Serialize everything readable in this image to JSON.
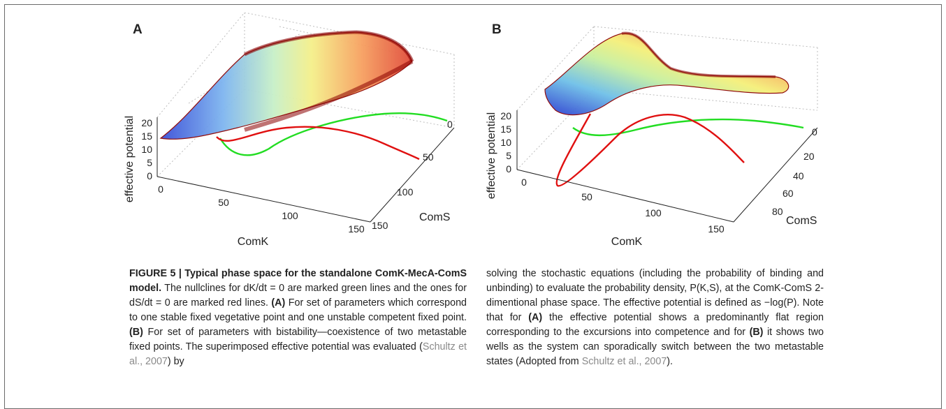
{
  "panels": [
    {
      "label": "A",
      "zlabel": "effective potential",
      "xlabel": "ComK",
      "ylabel": "ComS",
      "zticks": [
        "0",
        "5",
        "10",
        "15",
        "20"
      ],
      "xticks": [
        "0",
        "50",
        "100",
        "150"
      ],
      "yticks": [
        "0",
        "50",
        "100",
        "150"
      ]
    },
    {
      "label": "B",
      "zlabel": "effective potential",
      "xlabel": "ComK",
      "ylabel": "ComS",
      "zticks": [
        "0",
        "5",
        "10",
        "15",
        "20"
      ],
      "xticks": [
        "0",
        "50",
        "100",
        "150"
      ],
      "yticks": [
        "0",
        "20",
        "40",
        "60",
        "80"
      ]
    }
  ],
  "colors": {
    "green_nullcline": "#22dd22",
    "red_nullcline": "#e01010",
    "surface_edge": "#8b0000"
  },
  "caption": {
    "title": "FIGURE 5 | Typical phase space for the standalone ComK-MecA-ComS model.",
    "p1": " The nullclines for dK/dt = 0 are marked green lines and the ones for dS/dt = 0 are marked red lines. ",
    "a_label": "(A)",
    "p2": " For set of parameters which correspond to one stable fixed vegetative point and one unstable competent fixed point. ",
    "b_label": "(B)",
    "p3": " For set of parameters with bistability—coexistence of two metastable fixed points. The superimposed effective potential was evaluated (",
    "cite1": "Schultz et al., 2007",
    "p4": ") by solving the stochastic equations (including the probability of binding and unbinding) to evaluate the probability density, P(K,S), at the ComK-ComS 2-dimentional phase space. The effective potential is defined as −log(P). Note that for ",
    "a_label2": "(A)",
    "p5": " the effective potential shows a predominantly flat region corresponding to the excursions into competence and for ",
    "b_label2": "(B)",
    "p6": " it shows two wells as the system can sporadically switch between the two metastable states (Adopted from ",
    "cite2": "Schultz et al., 2007",
    "p7": ")."
  }
}
